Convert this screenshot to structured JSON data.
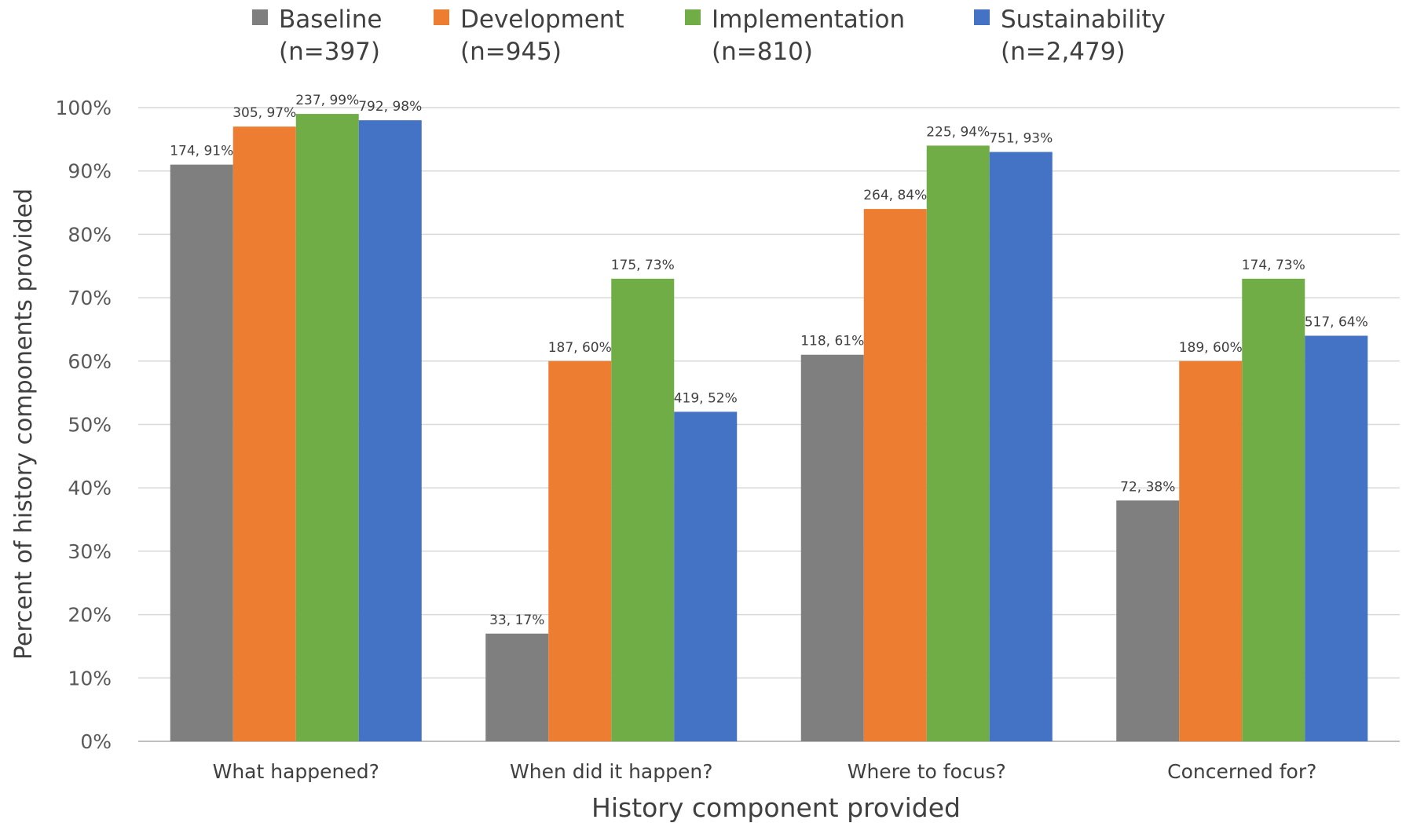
{
  "chart_data": {
    "type": "bar",
    "xlabel": "History component provided",
    "ylabel": "Percent of history components provided",
    "ylim": [
      0,
      100
    ],
    "y_ticks": [
      "0%",
      "10%",
      "20%",
      "30%",
      "40%",
      "50%",
      "60%",
      "70%",
      "80%",
      "90%",
      "100%"
    ],
    "grid": true,
    "legend_position": "top",
    "categories": [
      "What happened?",
      "When did it happen?",
      "Where to focus?",
      "Concerned for?"
    ],
    "series": [
      {
        "name": "Baseline",
        "name_sub": "(n=397)",
        "color": "#7f7f7f",
        "values": [
          91,
          17,
          61,
          38
        ],
        "labels": [
          "174, 91%",
          "33, 17%",
          "118, 61%",
          "72, 38%"
        ]
      },
      {
        "name": "Development",
        "name_sub": "(n=945)",
        "color": "#ed7d31",
        "values": [
          97,
          60,
          84,
          60
        ],
        "labels": [
          "305, 97%",
          "187, 60%",
          "264, 84%",
          "189, 60%"
        ]
      },
      {
        "name": "Implementation",
        "name_sub": "(n=810)",
        "color": "#70ad47",
        "values": [
          99,
          73,
          94,
          73
        ],
        "labels": [
          "237, 99%",
          "175, 73%",
          "225, 94%",
          "174, 73%"
        ]
      },
      {
        "name": "Sustainability",
        "name_sub": "(n=2,479)",
        "color": "#4472c4",
        "values": [
          98,
          52,
          93,
          64
        ],
        "labels": [
          "792, 98%",
          "419, 52%",
          "751, 93%",
          "517, 64%"
        ]
      }
    ]
  }
}
